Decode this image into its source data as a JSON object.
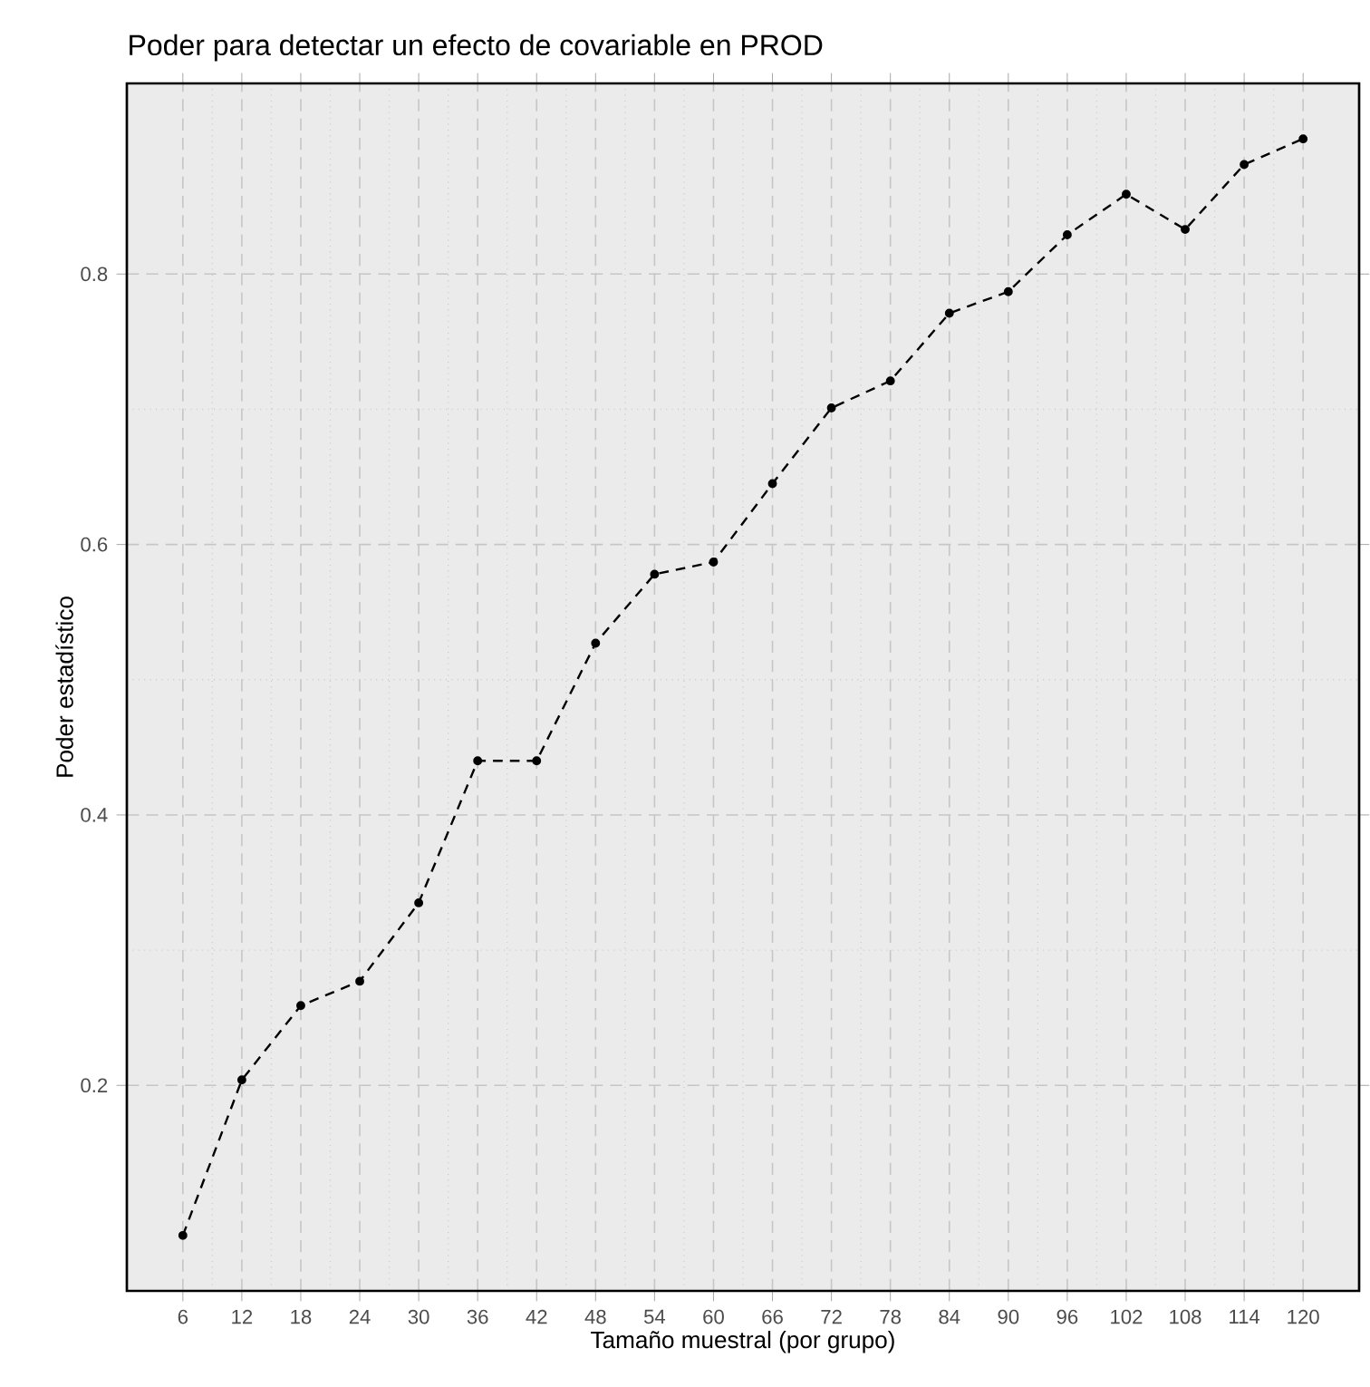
{
  "chart_data": {
    "type": "line",
    "title": "Poder para detectar un efecto de covariable en PROD",
    "xlabel": "Tamaño muestral (por grupo)",
    "ylabel": "Poder estadístico",
    "x": [
      6,
      12,
      18,
      24,
      30,
      36,
      42,
      48,
      54,
      60,
      66,
      72,
      78,
      84,
      90,
      96,
      102,
      108,
      114,
      120
    ],
    "series": [
      {
        "color": "#000000",
        "values": [
          0.089,
          0.204,
          0.259,
          0.277,
          0.335,
          0.44,
          0.44,
          0.527,
          0.578,
          0.587,
          0.645,
          0.701,
          0.721,
          0.771,
          0.787,
          0.829,
          0.859,
          0.833,
          0.881,
          0.9
        ]
      }
    ],
    "xlim": [
      0.3,
      125.7
    ],
    "ylim": [
      0.048,
      0.941
    ],
    "xticks": [
      6,
      12,
      18,
      24,
      30,
      36,
      42,
      48,
      54,
      60,
      66,
      72,
      78,
      84,
      90,
      96,
      102,
      108,
      114,
      120
    ],
    "yticks": [
      0.2,
      0.4,
      0.6,
      0.8
    ],
    "grid": true,
    "marker": "circle",
    "line_style": "dashed"
  }
}
